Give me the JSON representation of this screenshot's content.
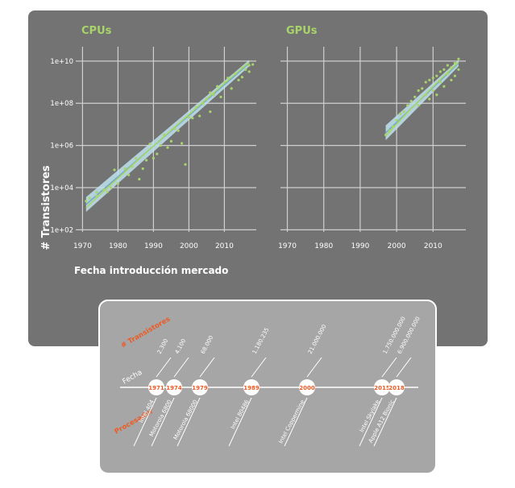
{
  "colors": {
    "panel_bg": "#737373",
    "grid": "#cfcfcf",
    "title_green": "#a9d46a",
    "points": "#a9d46a",
    "fit_line": "#a9d46a",
    "ci_band": "#bfe3ef",
    "timeline_bg": "#a6a6a6",
    "accent_orange": "#ee5a24",
    "white": "#ffffff"
  },
  "chart_data": {
    "type": "scatter",
    "y_axis_label": "# Transistores",
    "x_axis_label": "Fecha introducción mercado",
    "y_ticks": [
      "1e+02",
      "1e+04",
      "1e+06",
      "1e+08",
      "1e+10"
    ],
    "y_tick_exponents": [
      2,
      4,
      6,
      8,
      10
    ],
    "x_ticks": [
      1970,
      1980,
      1990,
      2000,
      2010
    ],
    "xlim": [
      1969,
      2019
    ],
    "ylim_log10": [
      1.9,
      10.3
    ],
    "grid": true,
    "scale_y": "log10",
    "panels": [
      {
        "title": "CPUs",
        "fit": {
          "x": [
            1971,
            2017
          ],
          "log10_y": [
            3.2,
            9.9
          ]
        },
        "points": [
          [
            1971,
            3.36
          ],
          [
            1972,
            3.5
          ],
          [
            1974,
            3.6
          ],
          [
            1974,
            3.78
          ],
          [
            1976,
            3.9
          ],
          [
            1977,
            3.8
          ],
          [
            1978,
            4.0
          ],
          [
            1979,
            4.84
          ],
          [
            1980,
            4.2
          ],
          [
            1982,
            4.9
          ],
          [
            1983,
            4.6
          ],
          [
            1984,
            5.0
          ],
          [
            1985,
            5.4
          ],
          [
            1986,
            4.4
          ],
          [
            1987,
            4.9
          ],
          [
            1988,
            5.3
          ],
          [
            1989,
            6.07
          ],
          [
            1990,
            5.4
          ],
          [
            1991,
            5.6
          ],
          [
            1992,
            6.0
          ],
          [
            1993,
            6.5
          ],
          [
            1994,
            5.9
          ],
          [
            1995,
            6.2
          ],
          [
            1996,
            6.8
          ],
          [
            1997,
            6.7
          ],
          [
            1998,
            6.1
          ],
          [
            1999,
            5.1
          ],
          [
            2000,
            7.33
          ],
          [
            2001,
            7.3
          ],
          [
            2002,
            7.8
          ],
          [
            2003,
            7.4
          ],
          [
            2004,
            8.0
          ],
          [
            2005,
            8.2
          ],
          [
            2006,
            7.6
          ],
          [
            2006,
            8.5
          ],
          [
            2007,
            8.4
          ],
          [
            2008,
            8.8
          ],
          [
            2009,
            8.3
          ],
          [
            2010,
            9.0
          ],
          [
            2011,
            9.2
          ],
          [
            2012,
            8.7
          ],
          [
            2013,
            9.4
          ],
          [
            2014,
            9.1
          ],
          [
            2015,
            9.24
          ],
          [
            2016,
            9.6
          ],
          [
            2017,
            9.8
          ],
          [
            2018,
            9.84
          ],
          [
            2015,
            9.7
          ],
          [
            2017,
            9.5
          ]
        ]
      },
      {
        "title": "GPUs",
        "fit": {
          "x": [
            1997,
            2017
          ],
          "log10_y": [
            6.6,
            9.9
          ]
        },
        "points": [
          [
            1997,
            6.5
          ],
          [
            1998,
            6.7
          ],
          [
            1999,
            6.9
          ],
          [
            2000,
            7.2
          ],
          [
            2001,
            7.5
          ],
          [
            2002,
            7.6
          ],
          [
            2003,
            7.9
          ],
          [
            2004,
            8.1
          ],
          [
            2005,
            8.3
          ],
          [
            2006,
            7.9
          ],
          [
            2006,
            8.6
          ],
          [
            2007,
            8.7
          ],
          [
            2008,
            8.4
          ],
          [
            2008,
            9.0
          ],
          [
            2009,
            8.2
          ],
          [
            2009,
            9.1
          ],
          [
            2010,
            9.2
          ],
          [
            2010,
            8.6
          ],
          [
            2011,
            9.3
          ],
          [
            2011,
            8.4
          ],
          [
            2012,
            9.5
          ],
          [
            2012,
            9.0
          ],
          [
            2013,
            9.6
          ],
          [
            2013,
            8.8
          ],
          [
            2014,
            9.4
          ],
          [
            2014,
            9.8
          ],
          [
            2015,
            9.7
          ],
          [
            2015,
            9.1
          ],
          [
            2016,
            9.9
          ],
          [
            2016,
            9.3
          ],
          [
            2017,
            10.1
          ],
          [
            2017,
            9.6
          ]
        ]
      }
    ]
  },
  "timeline": {
    "row_labels": {
      "transistors": "# Transistores",
      "date": "Fecha",
      "processor": "Procesador"
    },
    "events": [
      {
        "year": "1971",
        "transistors": "2.300",
        "processor": "Intel 404"
      },
      {
        "year": "1974",
        "transistors": "4.100",
        "processor": "Motorola 6800"
      },
      {
        "year": "1979",
        "transistors": "68.000",
        "processor": "Motorola 68000"
      },
      {
        "year": "1989",
        "transistors": "1.180.235",
        "processor": "Intel 80486"
      },
      {
        "year": "2000",
        "transistors": "21.000.000",
        "processor": "Intel Coppermine"
      },
      {
        "year": "2015",
        "transistors": "1.750.000.000",
        "processor": "Intel Skylake"
      },
      {
        "year": "2018",
        "transistors": "6.900.000.000",
        "processor": "Apple A12 Bionic"
      }
    ]
  }
}
